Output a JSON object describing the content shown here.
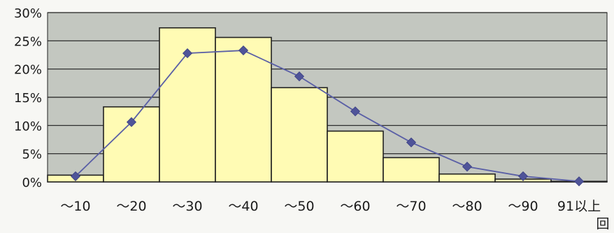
{
  "chart_data": {
    "type": "bar",
    "categories": [
      "～10",
      "～20",
      "～30",
      "～40",
      "～50",
      "～60",
      "～70",
      "～80",
      "～90",
      "91以上"
    ],
    "series": [
      {
        "type": "bar",
        "values": [
          1.2,
          13.3,
          27.3,
          25.6,
          16.7,
          9.0,
          4.3,
          1.4,
          0.5,
          0.1
        ]
      },
      {
        "type": "line",
        "values": [
          1.0,
          10.6,
          22.8,
          23.3,
          18.7,
          12.5,
          7.0,
          2.7,
          1.0,
          0.1
        ]
      }
    ],
    "ylim": [
      0,
      30
    ],
    "yticks": [
      "0%",
      "5%",
      "10%",
      "15%",
      "20%",
      "25%",
      "30%"
    ],
    "x_unit": "回",
    "grid": true,
    "colors": {
      "plot_bg": "#c3c7c0",
      "bar_fill": "#fffbb4",
      "bar_stroke": "#222222",
      "line": "#5a5fa6",
      "marker": "#4f5499",
      "grid": "#1e1e1e"
    }
  }
}
